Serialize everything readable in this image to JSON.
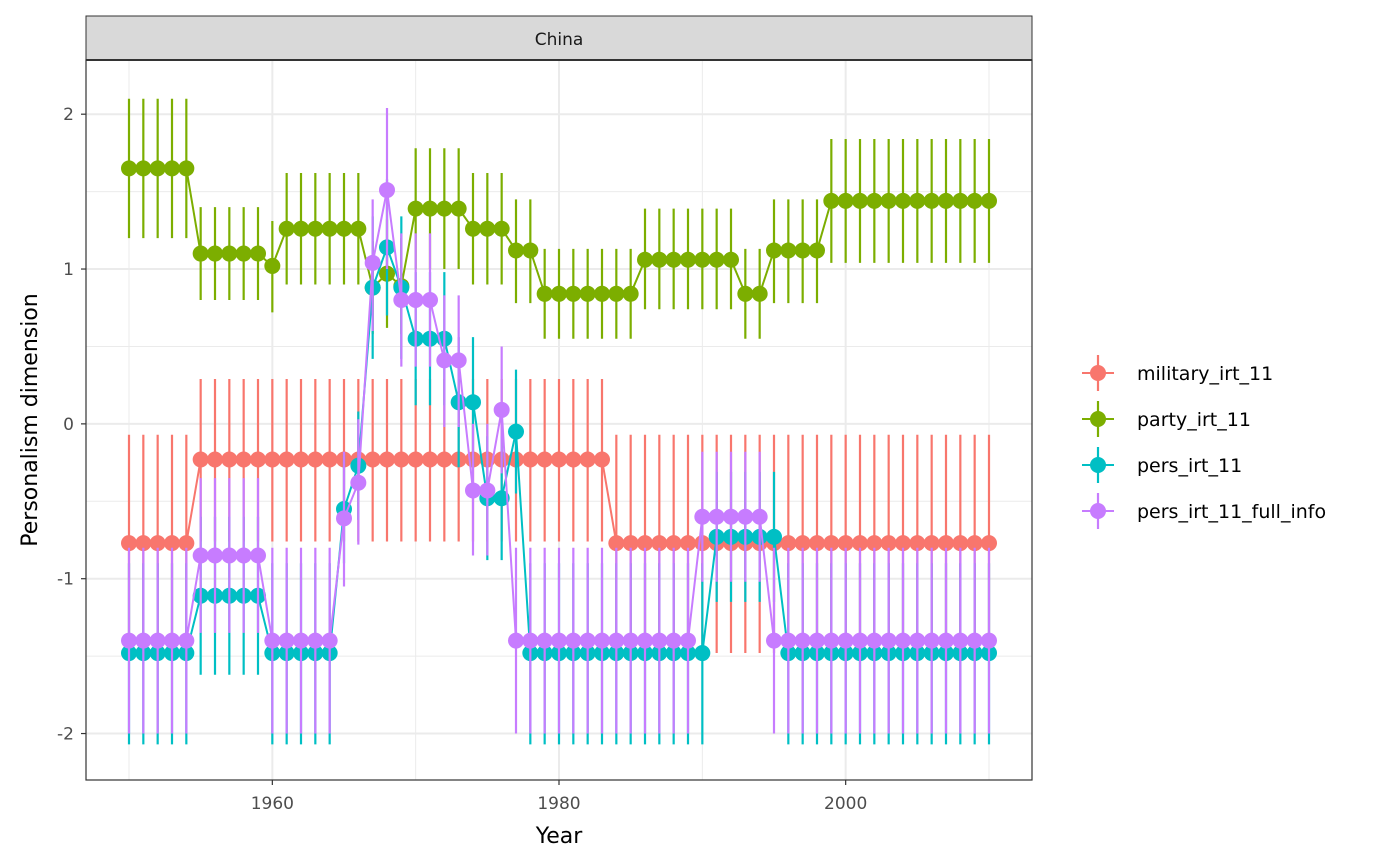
{
  "colors": {
    "military_irt_11": "#F8766D",
    "party_irt_11": "#7CAE00",
    "pers_irt_11": "#00BFC4",
    "pers_irt_11_full_info": "#C77CFF",
    "grid": "#ebebeb",
    "strip_fill": "#d9d9d9",
    "panel_border": "#333333"
  },
  "chart_data": {
    "type": "line",
    "facet_label": "China",
    "xlabel": "Year",
    "ylabel": "Personalism dimension",
    "xlim": [
      1947,
      2013
    ],
    "ylim": [
      -2.3,
      2.35
    ],
    "x_ticks": [
      1960,
      1980,
      2000
    ],
    "x_tick_labels": [
      "1960",
      "1980",
      "2000"
    ],
    "y_ticks": [
      -2,
      -1,
      0,
      1,
      2
    ],
    "y_tick_labels": [
      "-2",
      "-1",
      "0",
      "1",
      "2"
    ],
    "grid": true,
    "legend_position": "right",
    "legend_entries": [
      "military_irt_11",
      "party_irt_11",
      "pers_irt_11",
      "pers_irt_11_full_info"
    ],
    "x": [
      1950,
      1951,
      1952,
      1953,
      1954,
      1955,
      1956,
      1957,
      1958,
      1959,
      1960,
      1961,
      1962,
      1963,
      1964,
      1965,
      1966,
      1967,
      1968,
      1969,
      1970,
      1971,
      1972,
      1973,
      1974,
      1975,
      1976,
      1977,
      1978,
      1979,
      1980,
      1981,
      1982,
      1983,
      1984,
      1985,
      1986,
      1987,
      1988,
      1989,
      1990,
      1991,
      1992,
      1993,
      1994,
      1995,
      1996,
      1997,
      1998,
      1999,
      2000,
      2001,
      2002,
      2003,
      2004,
      2005,
      2006,
      2007,
      2008,
      2009,
      2010
    ],
    "series": [
      {
        "name": "military_irt_11",
        "values": [
          -0.77,
          -0.77,
          -0.77,
          -0.77,
          -0.77,
          -0.23,
          -0.23,
          -0.23,
          -0.23,
          -0.23,
          -0.23,
          -0.23,
          -0.23,
          -0.23,
          -0.23,
          -0.23,
          -0.23,
          -0.23,
          -0.23,
          -0.23,
          -0.23,
          -0.23,
          -0.23,
          -0.23,
          -0.23,
          -0.23,
          -0.23,
          -0.23,
          -0.23,
          -0.23,
          -0.23,
          -0.23,
          -0.23,
          -0.23,
          -0.77,
          -0.77,
          -0.77,
          -0.77,
          -0.77,
          -0.77,
          -0.77,
          -0.77,
          -0.77,
          -0.77,
          -0.77,
          -0.77,
          -0.77,
          -0.77,
          -0.77,
          -0.77,
          -0.77,
          -0.77,
          -0.77,
          -0.77,
          -0.77,
          -0.77,
          -0.77,
          -0.77,
          -0.77,
          -0.77,
          -0.77
        ],
        "lower": [
          -1.43,
          -1.43,
          -1.43,
          -1.43,
          -1.43,
          -0.76,
          -0.76,
          -0.76,
          -0.76,
          -0.76,
          -0.76,
          -0.76,
          -0.76,
          -0.76,
          -0.76,
          -0.76,
          -0.76,
          -0.76,
          -0.76,
          -0.76,
          -0.76,
          -0.76,
          -0.76,
          -0.76,
          -0.76,
          -0.76,
          -0.76,
          -0.76,
          -0.76,
          -0.76,
          -0.76,
          -0.76,
          -0.76,
          -0.76,
          -1.48,
          -1.48,
          -1.48,
          -1.48,
          -1.48,
          -1.48,
          -1.48,
          -1.48,
          -1.48,
          -1.48,
          -1.48,
          -1.48,
          -1.48,
          -1.48,
          -1.48,
          -1.48,
          -1.48,
          -1.48,
          -1.48,
          -1.48,
          -1.48,
          -1.48,
          -1.48,
          -1.48,
          -1.48,
          -1.48,
          -1.48
        ],
        "upper": [
          -0.07,
          -0.07,
          -0.07,
          -0.07,
          -0.07,
          0.29,
          0.29,
          0.29,
          0.29,
          0.29,
          0.29,
          0.29,
          0.29,
          0.29,
          0.29,
          0.29,
          0.29,
          0.29,
          0.29,
          0.29,
          0.29,
          0.29,
          0.29,
          0.29,
          0.29,
          0.29,
          0.29,
          0.29,
          0.29,
          0.29,
          0.29,
          0.29,
          0.29,
          0.29,
          -0.07,
          -0.07,
          -0.07,
          -0.07,
          -0.07,
          -0.07,
          -0.07,
          -0.07,
          -0.07,
          -0.07,
          -0.07,
          -0.07,
          -0.07,
          -0.07,
          -0.07,
          -0.07,
          -0.07,
          -0.07,
          -0.07,
          -0.07,
          -0.07,
          -0.07,
          -0.07,
          -0.07,
          -0.07,
          -0.07,
          -0.07
        ]
      },
      {
        "name": "party_irt_11",
        "values": [
          1.65,
          1.65,
          1.65,
          1.65,
          1.65,
          1.1,
          1.1,
          1.1,
          1.1,
          1.1,
          1.02,
          1.26,
          1.26,
          1.26,
          1.26,
          1.26,
          1.26,
          0.88,
          0.97,
          0.89,
          1.39,
          1.39,
          1.39,
          1.39,
          1.26,
          1.26,
          1.26,
          1.12,
          1.12,
          0.84,
          0.84,
          0.84,
          0.84,
          0.84,
          0.84,
          0.84,
          1.06,
          1.06,
          1.06,
          1.06,
          1.06,
          1.06,
          1.06,
          0.84,
          0.84,
          1.12,
          1.12,
          1.12,
          1.12,
          1.44,
          1.44,
          1.44,
          1.44,
          1.44,
          1.44,
          1.44,
          1.44,
          1.44,
          1.44,
          1.44,
          1.44
        ],
        "lower": [
          1.2,
          1.2,
          1.2,
          1.2,
          1.2,
          0.8,
          0.8,
          0.8,
          0.8,
          0.8,
          0.72,
          0.9,
          0.9,
          0.9,
          0.9,
          0.9,
          0.9,
          0.58,
          0.62,
          0.58,
          1.0,
          1.0,
          1.0,
          1.0,
          0.9,
          0.9,
          0.9,
          0.78,
          0.78,
          0.55,
          0.55,
          0.55,
          0.55,
          0.55,
          0.55,
          0.55,
          0.74,
          0.74,
          0.74,
          0.74,
          0.74,
          0.74,
          0.74,
          0.55,
          0.55,
          0.78,
          0.78,
          0.78,
          0.78,
          1.04,
          1.04,
          1.04,
          1.04,
          1.04,
          1.04,
          1.04,
          1.04,
          1.04,
          1.04,
          1.04,
          1.04
        ],
        "upper": [
          2.1,
          2.1,
          2.1,
          2.1,
          2.1,
          1.4,
          1.4,
          1.4,
          1.4,
          1.4,
          1.31,
          1.62,
          1.62,
          1.62,
          1.62,
          1.62,
          1.62,
          1.18,
          1.32,
          1.2,
          1.78,
          1.78,
          1.78,
          1.78,
          1.62,
          1.62,
          1.62,
          1.45,
          1.45,
          1.13,
          1.13,
          1.13,
          1.13,
          1.13,
          1.13,
          1.13,
          1.39,
          1.39,
          1.39,
          1.39,
          1.39,
          1.39,
          1.39,
          1.13,
          1.13,
          1.45,
          1.45,
          1.45,
          1.45,
          1.84,
          1.84,
          1.84,
          1.84,
          1.84,
          1.84,
          1.84,
          1.84,
          1.84,
          1.84,
          1.84,
          1.84
        ]
      },
      {
        "name": "pers_irt_11",
        "values": [
          -1.48,
          -1.48,
          -1.48,
          -1.48,
          -1.48,
          -1.11,
          -1.11,
          -1.11,
          -1.11,
          -1.11,
          -1.48,
          -1.48,
          -1.48,
          -1.48,
          -1.48,
          -0.55,
          -0.27,
          0.88,
          1.14,
          0.88,
          0.55,
          0.55,
          0.55,
          0.14,
          0.14,
          -0.48,
          -0.48,
          -0.05,
          -1.48,
          -1.48,
          -1.48,
          -1.48,
          -1.48,
          -1.48,
          -1.48,
          -1.48,
          -1.48,
          -1.48,
          -1.48,
          -1.48,
          -1.48,
          -0.73,
          -0.73,
          -0.73,
          -0.73,
          -0.73,
          -1.48,
          -1.48,
          -1.48,
          -1.48,
          -1.48,
          -1.48,
          -1.48,
          -1.48,
          -1.48,
          -1.48,
          -1.48,
          -1.48,
          -1.48,
          -1.48,
          -1.48
        ],
        "lower": [
          -2.07,
          -2.07,
          -2.07,
          -2.07,
          -2.07,
          -1.62,
          -1.62,
          -1.62,
          -1.62,
          -1.62,
          -2.07,
          -2.07,
          -2.07,
          -2.07,
          -2.07,
          -0.9,
          -0.62,
          0.42,
          0.7,
          0.42,
          0.12,
          0.12,
          0.12,
          -0.28,
          -0.28,
          -0.88,
          -0.88,
          -0.45,
          -2.07,
          -2.07,
          -2.07,
          -2.07,
          -2.07,
          -2.07,
          -2.07,
          -2.07,
          -2.07,
          -2.07,
          -2.07,
          -2.07,
          -2.07,
          -1.15,
          -1.15,
          -1.15,
          -1.15,
          -1.15,
          -2.07,
          -2.07,
          -2.07,
          -2.07,
          -2.07,
          -2.07,
          -2.07,
          -2.07,
          -2.07,
          -2.07,
          -2.07,
          -2.07,
          -2.07,
          -2.07,
          -2.07
        ],
        "upper": [
          -0.9,
          -0.9,
          -0.9,
          -0.9,
          -0.9,
          -0.6,
          -0.6,
          -0.6,
          -0.6,
          -0.6,
          -0.9,
          -0.9,
          -0.9,
          -0.9,
          -0.9,
          -0.2,
          0.08,
          1.34,
          1.58,
          1.34,
          0.98,
          0.98,
          0.98,
          0.56,
          0.56,
          -0.08,
          -0.08,
          0.35,
          -0.9,
          -0.9,
          -0.9,
          -0.9,
          -0.9,
          -0.9,
          -0.9,
          -0.9,
          -0.9,
          -0.9,
          -0.9,
          -0.9,
          -0.9,
          -0.31,
          -0.31,
          -0.31,
          -0.31,
          -0.31,
          -0.9,
          -0.9,
          -0.9,
          -0.9,
          -0.9,
          -0.9,
          -0.9,
          -0.9,
          -0.9,
          -0.9,
          -0.9,
          -0.9,
          -0.9,
          -0.9,
          -0.9
        ]
      },
      {
        "name": "pers_irt_11_full_info",
        "values": [
          -1.4,
          -1.4,
          -1.4,
          -1.4,
          -1.4,
          -0.85,
          -0.85,
          -0.85,
          -0.85,
          -0.85,
          -1.4,
          -1.4,
          -1.4,
          -1.4,
          -1.4,
          -0.61,
          -0.38,
          1.04,
          1.51,
          0.8,
          0.8,
          0.8,
          0.41,
          0.41,
          -0.43,
          -0.43,
          0.09,
          -1.4,
          -1.4,
          -1.4,
          -1.4,
          -1.4,
          -1.4,
          -1.4,
          -1.4,
          -1.4,
          -1.4,
          -1.4,
          -1.4,
          -1.4,
          -0.6,
          -0.6,
          -0.6,
          -0.6,
          -0.6,
          -1.4,
          -1.4,
          -1.4,
          -1.4,
          -1.4,
          -1.4,
          -1.4,
          -1.4,
          -1.4,
          -1.4,
          -1.4,
          -1.4,
          -1.4,
          -1.4,
          -1.4,
          -1.4
        ],
        "lower": [
          -2.0,
          -2.0,
          -2.0,
          -2.0,
          -2.0,
          -1.35,
          -1.35,
          -1.35,
          -1.35,
          -1.35,
          -2.0,
          -2.0,
          -2.0,
          -2.0,
          -2.0,
          -1.05,
          -0.78,
          0.6,
          1.0,
          0.37,
          0.37,
          0.37,
          -0.02,
          -0.02,
          -0.85,
          -0.85,
          -0.32,
          -2.0,
          -2.0,
          -2.0,
          -2.0,
          -2.0,
          -2.0,
          -2.0,
          -2.0,
          -2.0,
          -2.0,
          -2.0,
          -2.0,
          -2.0,
          -1.02,
          -1.02,
          -1.02,
          -1.02,
          -1.02,
          -2.0,
          -2.0,
          -2.0,
          -2.0,
          -2.0,
          -2.0,
          -2.0,
          -2.0,
          -2.0,
          -2.0,
          -2.0,
          -2.0,
          -2.0,
          -2.0,
          -2.0,
          -2.0
        ],
        "upper": [
          -0.8,
          -0.8,
          -0.8,
          -0.8,
          -0.8,
          -0.35,
          -0.35,
          -0.35,
          -0.35,
          -0.35,
          -0.8,
          -0.8,
          -0.8,
          -0.8,
          -0.8,
          -0.18,
          0.03,
          1.45,
          2.04,
          1.23,
          1.23,
          1.23,
          0.83,
          0.83,
          0.0,
          0.0,
          0.5,
          -0.8,
          -0.8,
          -0.8,
          -0.8,
          -0.8,
          -0.8,
          -0.8,
          -0.8,
          -0.8,
          -0.8,
          -0.8,
          -0.8,
          -0.8,
          -0.18,
          -0.18,
          -0.18,
          -0.18,
          -0.18,
          -0.8,
          -0.8,
          -0.8,
          -0.8,
          -0.8,
          -0.8,
          -0.8,
          -0.8,
          -0.8,
          -0.8,
          -0.8,
          -0.8,
          -0.8,
          -0.8,
          -0.8,
          -0.8
        ]
      }
    ]
  }
}
